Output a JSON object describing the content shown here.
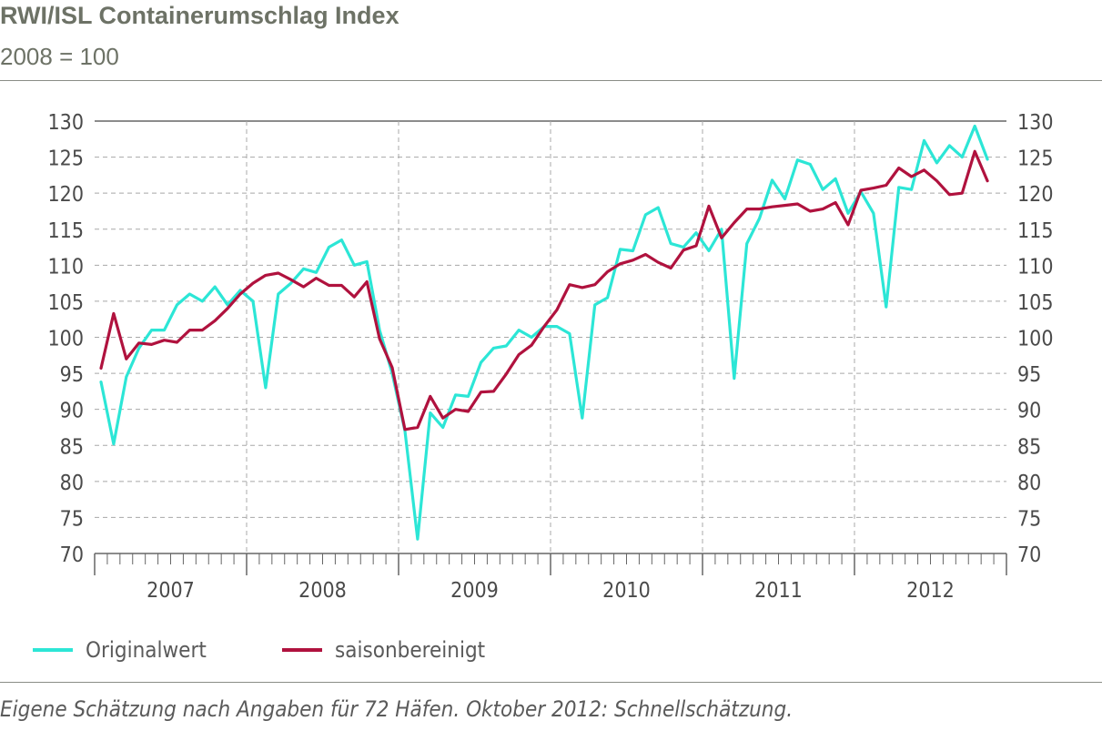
{
  "header": {
    "title": "RWI/ISL Containerumschlag Index",
    "subtitle": "2008 = 100"
  },
  "footnote": "Eigene Schätzung nach Angaben für 72 Häfen. Oktober 2012: Schnellschätzung.",
  "colors": {
    "original": "#2ce6d6",
    "seasonal": "#b0123e",
    "grid": "#a8a8a8",
    "axis": "#666666"
  },
  "chart_data": {
    "type": "line",
    "title": "RWI/ISL Containerumschlag Index",
    "subtitle": "2008 = 100",
    "ylim": [
      70,
      130
    ],
    "y_ticks": [
      70,
      75,
      80,
      85,
      90,
      95,
      100,
      105,
      110,
      115,
      120,
      125,
      130
    ],
    "y_tick_labels": [
      "70",
      "75",
      "80",
      "85",
      "90",
      "95",
      "100",
      "105",
      "110",
      "115",
      "120",
      "125",
      "130"
    ],
    "x_tick_labels": [
      "2007",
      "2008",
      "2009",
      "2010",
      "2011",
      "2012"
    ],
    "x_start": "2007-01",
    "x_end": "2012-10",
    "grid": true,
    "dual_y_axis": true,
    "legend_position": "bottom-left",
    "series": [
      {
        "name": "Originalwert",
        "color": "#2ce6d6",
        "values": [
          93.8,
          85.2,
          94.5,
          98.5,
          101.0,
          101.0,
          104.5,
          106.0,
          105.0,
          107.0,
          104.5,
          106.5,
          105.0,
          93.0,
          106.0,
          107.5,
          109.5,
          109.0,
          112.5,
          113.5,
          110.0,
          110.5,
          101.0,
          95.0,
          87.0,
          72.0,
          89.5,
          87.5,
          92.0,
          91.8,
          96.5,
          98.5,
          98.8,
          101.0,
          100.0,
          101.5,
          101.5,
          100.5,
          88.8,
          104.5,
          105.5,
          112.2,
          112.0,
          117.0,
          118.0,
          113.0,
          112.5,
          114.5,
          112.0,
          115.0,
          94.3,
          113.0,
          116.5,
          121.8,
          119.2,
          124.6,
          124.0,
          120.5,
          122.0,
          117.2,
          120.2,
          117.2,
          104.2,
          120.8,
          120.5,
          127.3,
          124.2,
          126.6,
          125.0,
          129.3,
          124.7
        ]
      },
      {
        "name": "saisonbereinigt",
        "color": "#b0123e",
        "values": [
          95.7,
          103.3,
          97.0,
          99.2,
          99.0,
          99.6,
          99.3,
          101.0,
          101.0,
          102.3,
          104.0,
          106.0,
          107.5,
          108.6,
          108.9,
          108.0,
          107.0,
          108.2,
          107.2,
          107.2,
          105.6,
          107.7,
          99.8,
          95.8,
          87.2,
          87.5,
          91.8,
          88.8,
          90.0,
          89.7,
          92.4,
          92.5,
          94.9,
          97.6,
          98.9,
          101.5,
          103.8,
          107.3,
          106.9,
          107.3,
          109.1,
          110.2,
          110.7,
          111.5,
          110.4,
          109.6,
          112.1,
          112.7,
          118.2,
          113.8,
          115.9,
          117.8,
          117.8,
          118.1,
          118.3,
          118.5,
          117.5,
          117.8,
          118.7,
          115.6,
          120.4,
          120.7,
          121.1,
          123.5,
          122.3,
          123.2,
          121.7,
          119.8,
          120.0,
          125.8,
          121.7
        ]
      }
    ]
  },
  "legend": [
    {
      "label": "Originalwert",
      "color": "#2ce6d6"
    },
    {
      "label": "saisonbereinigt",
      "color": "#b0123e"
    }
  ]
}
